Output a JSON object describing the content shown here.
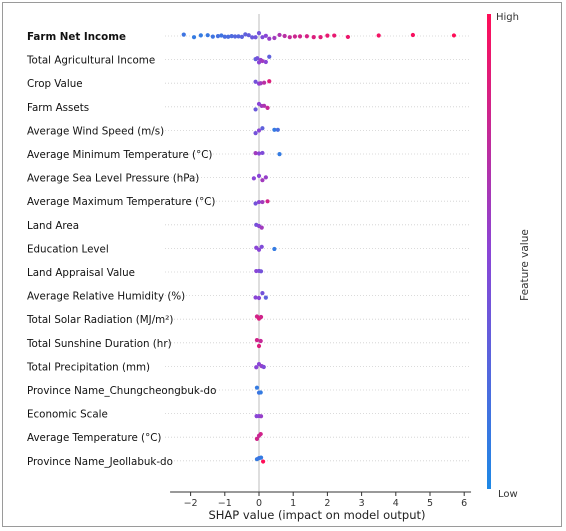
{
  "chart_data": {
    "type": "scatter",
    "subtype": "shap-beeswarm-summary",
    "xlabel": "SHAP value (impact on model output)",
    "xlim": [
      -2.6,
      6.2
    ],
    "x_ticks": [
      -2,
      -1,
      0,
      1,
      2,
      3,
      4,
      5,
      6
    ],
    "grid": false,
    "legend_position": "right",
    "colorbar": {
      "label": "Feature value",
      "high_label": "High",
      "low_label": "Low",
      "low_color": "#1e88e5",
      "high_color": "#ff0d57"
    },
    "features": [
      {
        "name": "Farm Net Income",
        "bold": true,
        "points": [
          [
            -2.2,
            0.15
          ],
          [
            -1.9,
            0.1
          ],
          [
            -1.7,
            0.1
          ],
          [
            -1.5,
            0.12
          ],
          [
            -1.35,
            0.15
          ],
          [
            -1.2,
            0.18
          ],
          [
            -1.1,
            0.15
          ],
          [
            -1.0,
            0.2
          ],
          [
            -0.9,
            0.2
          ],
          [
            -0.8,
            0.22
          ],
          [
            -0.7,
            0.25
          ],
          [
            -0.6,
            0.25
          ],
          [
            -0.5,
            0.28
          ],
          [
            -0.4,
            0.3
          ],
          [
            -0.3,
            0.32
          ],
          [
            -0.2,
            0.35
          ],
          [
            -0.1,
            0.38
          ],
          [
            0.0,
            0.4
          ],
          [
            0.1,
            0.45
          ],
          [
            0.2,
            0.5
          ],
          [
            0.3,
            0.55
          ],
          [
            0.45,
            0.6
          ],
          [
            0.6,
            0.65
          ],
          [
            0.75,
            0.7
          ],
          [
            0.9,
            0.75
          ],
          [
            1.05,
            0.78
          ],
          [
            1.2,
            0.8
          ],
          [
            1.4,
            0.82
          ],
          [
            1.6,
            0.85
          ],
          [
            1.8,
            0.87
          ],
          [
            2.0,
            0.9
          ],
          [
            2.2,
            0.9
          ],
          [
            2.6,
            0.92
          ],
          [
            3.5,
            0.95
          ],
          [
            4.5,
            0.97
          ],
          [
            5.7,
            1.0
          ]
        ]
      },
      {
        "name": "Total Agricultural Income",
        "bold": false,
        "points": [
          [
            -0.1,
            0.3
          ],
          [
            -0.05,
            0.4
          ],
          [
            0.0,
            0.5
          ],
          [
            0.05,
            0.55
          ],
          [
            0.1,
            0.6
          ],
          [
            0.2,
            0.5
          ],
          [
            0.3,
            0.3
          ]
        ]
      },
      {
        "name": "Crop Value",
        "bold": false,
        "points": [
          [
            -0.1,
            0.4
          ],
          [
            0.0,
            0.5
          ],
          [
            0.05,
            0.6
          ],
          [
            0.15,
            0.7
          ],
          [
            0.3,
            0.85
          ]
        ]
      },
      {
        "name": "Farm Assets",
        "bold": false,
        "points": [
          [
            -0.1,
            0.35
          ],
          [
            0.0,
            0.5
          ],
          [
            0.08,
            0.6
          ],
          [
            0.15,
            0.65
          ],
          [
            0.25,
            0.75
          ]
        ]
      },
      {
        "name": "Average Wind Speed (m/s)",
        "bold": false,
        "points": [
          [
            -0.1,
            0.4
          ],
          [
            0.0,
            0.5
          ],
          [
            0.1,
            0.3
          ],
          [
            0.45,
            0.1
          ],
          [
            0.55,
            0.2
          ]
        ]
      },
      {
        "name": "Average Minimum  Temperature (°C)",
        "bold": false,
        "points": [
          [
            -0.1,
            0.6
          ],
          [
            0.0,
            0.5
          ],
          [
            0.1,
            0.45
          ],
          [
            0.6,
            0.1
          ]
        ]
      },
      {
        "name": "Average Sea Level Pressure (hPa)",
        "bold": false,
        "points": [
          [
            -0.15,
            0.5
          ],
          [
            0.0,
            0.5
          ],
          [
            0.1,
            0.6
          ],
          [
            0.2,
            0.55
          ]
        ]
      },
      {
        "name": "Average Maximum Temperature (°C)",
        "bold": false,
        "points": [
          [
            -0.1,
            0.4
          ],
          [
            0.0,
            0.5
          ],
          [
            0.1,
            0.6
          ],
          [
            0.25,
            0.8
          ]
        ]
      },
      {
        "name": "Land Area",
        "bold": false,
        "points": [
          [
            -0.08,
            0.4
          ],
          [
            0.0,
            0.5
          ],
          [
            0.08,
            0.6
          ]
        ]
      },
      {
        "name": "Education Level",
        "bold": false,
        "points": [
          [
            -0.08,
            0.5
          ],
          [
            0.0,
            0.5
          ],
          [
            0.08,
            0.45
          ],
          [
            0.45,
            0.1
          ]
        ]
      },
      {
        "name": "Land Appraisal Value",
        "bold": false,
        "points": [
          [
            -0.08,
            0.5
          ],
          [
            0.0,
            0.45
          ],
          [
            0.06,
            0.4
          ]
        ]
      },
      {
        "name": "Average Relative Humidity (%)",
        "bold": false,
        "points": [
          [
            -0.1,
            0.5
          ],
          [
            0.0,
            0.5
          ],
          [
            0.1,
            0.4
          ],
          [
            0.2,
            0.3
          ]
        ]
      },
      {
        "name": "Total Solar Radiation (MJ/m²)",
        "bold": false,
        "points": [
          [
            -0.06,
            0.8
          ],
          [
            0.0,
            0.85
          ],
          [
            0.06,
            0.8
          ]
        ]
      },
      {
        "name": "Total Sunshine Duration (hr)",
        "bold": false,
        "points": [
          [
            -0.06,
            0.8
          ],
          [
            0.0,
            0.85
          ],
          [
            0.05,
            0.75
          ]
        ]
      },
      {
        "name": "Total Precipitation (mm)",
        "bold": false,
        "points": [
          [
            -0.08,
            0.5
          ],
          [
            0.0,
            0.5
          ],
          [
            0.08,
            0.55
          ],
          [
            0.14,
            0.45
          ]
        ]
      },
      {
        "name": "Province Name_Chungcheongbuk-do",
        "bold": false,
        "points": [
          [
            -0.06,
            0.1
          ],
          [
            0.0,
            0.15
          ],
          [
            0.05,
            0.1
          ]
        ]
      },
      {
        "name": "Economic Scale",
        "bold": false,
        "points": [
          [
            -0.07,
            0.5
          ],
          [
            0.0,
            0.5
          ],
          [
            0.06,
            0.55
          ]
        ]
      },
      {
        "name": "Average Temperature (°C)",
        "bold": false,
        "points": [
          [
            -0.06,
            0.8
          ],
          [
            0.0,
            0.75
          ],
          [
            0.05,
            0.8
          ]
        ]
      },
      {
        "name": "Province Name_Jeollabuk-do",
        "bold": false,
        "points": [
          [
            -0.06,
            0.1
          ],
          [
            0.0,
            0.15
          ],
          [
            0.06,
            0.1
          ],
          [
            0.12,
            1.0
          ]
        ]
      }
    ]
  }
}
